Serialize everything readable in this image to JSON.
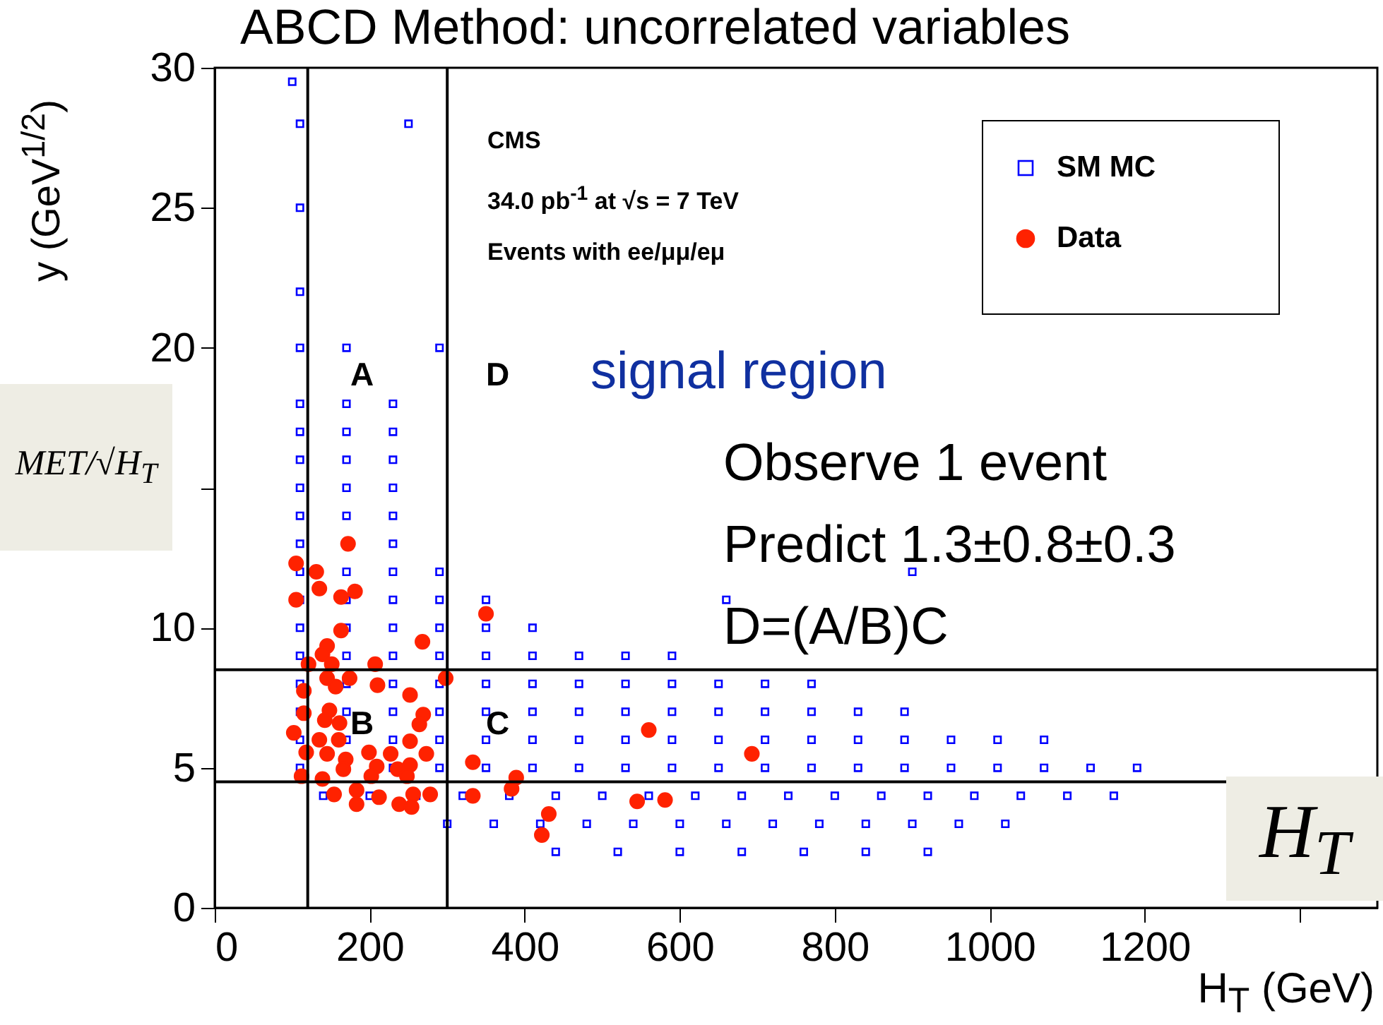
{
  "chart_data": {
    "type": "scatter",
    "title": "ABCD Method: uncorrelated variables",
    "xlabel": "H$_{T}$ (GeV)",
    "ylabel": "y (GeV$^{1/2}$)",
    "xlim": [
      0,
      1500
    ],
    "xticks": [
      0,
      200,
      400,
      600,
      800,
      1000,
      1200,
      {
        "value": 1400,
        "label": null
      }
    ],
    "ylim": [
      0,
      30
    ],
    "yticks": [
      0,
      5,
      10,
      {
        "value": 15,
        "label": null
      },
      20,
      25,
      30
    ],
    "legend": "top right",
    "ref_lines": [
      {
        "axis": "x",
        "value": 120,
        "color": "#000000"
      },
      {
        "axis": "x",
        "value": 300,
        "color": "#000000"
      },
      {
        "axis": "y",
        "value": 8.5,
        "color": "#000000"
      },
      {
        "axis": "y",
        "value": 4.5,
        "color": "#000000"
      }
    ],
    "annotations": [
      "CMS",
      "34.0 pb$^{-1}$  at √s = 7 TeV",
      "Events with ee/μμ/eμ",
      "A",
      "D",
      "B",
      "C",
      "signal region",
      "Observe 1 event",
      "Predict 1.3±0.8±0.3",
      "D=(A/B)C",
      "MET/√H$_{T}$",
      "H$_{T}$"
    ],
    "series": [
      {
        "name": "SM MC",
        "color": "#0000ff",
        "marker": "square",
        "x": [
          440,
          520,
          600,
          680,
          760,
          840,
          920,
          300,
          360,
          420,
          480,
          540,
          600,
          660,
          720,
          780,
          840,
          900,
          960,
          1020,
          140,
          200,
          260,
          320,
          380,
          440,
          500,
          560,
          620,
          680,
          740,
          800,
          860,
          920,
          980,
          1040,
          1100,
          1160,
          110,
          230,
          290,
          350,
          410,
          470,
          530,
          590,
          650,
          710,
          770,
          830,
          890,
          950,
          1010,
          1070,
          1130,
          1190,
          110,
          170,
          230,
          290,
          350,
          410,
          470,
          530,
          590,
          650,
          710,
          770,
          830,
          890,
          950,
          1010,
          1070,
          110,
          170,
          230,
          290,
          350,
          410,
          470,
          530,
          590,
          650,
          710,
          770,
          830,
          890,
          110,
          170,
          230,
          290,
          350,
          410,
          470,
          530,
          590,
          650,
          710,
          770,
          110,
          170,
          230,
          290,
          350,
          410,
          470,
          530,
          590,
          110,
          170,
          230,
          290,
          350,
          410,
          110,
          170,
          230,
          290,
          350,
          660,
          110,
          170,
          230,
          290,
          900,
          110,
          230,
          110,
          170,
          230,
          110,
          170,
          230,
          110,
          170,
          230,
          110,
          170,
          230,
          110,
          170,
          230,
          110,
          170,
          290,
          110,
          110,
          110,
          250,
          100
        ],
        "values": [
          2,
          2,
          2,
          2,
          2,
          2,
          2,
          3,
          3,
          3,
          3,
          3,
          3,
          3,
          3,
          3,
          3,
          3,
          3,
          3,
          4,
          4,
          4,
          4,
          4,
          4,
          4,
          4,
          4,
          4,
          4,
          4,
          4,
          4,
          4,
          4,
          4,
          4,
          5,
          5,
          5,
          5,
          5,
          5,
          5,
          5,
          5,
          5,
          5,
          5,
          5,
          5,
          5,
          5,
          5,
          5,
          6,
          6,
          6,
          6,
          6,
          6,
          6,
          6,
          6,
          6,
          6,
          6,
          6,
          6,
          6,
          6,
          6,
          7,
          7,
          7,
          7,
          7,
          7,
          7,
          7,
          7,
          7,
          7,
          7,
          7,
          7,
          8,
          8,
          8,
          8,
          8,
          8,
          8,
          8,
          8,
          8,
          8,
          8,
          9,
          9,
          9,
          9,
          9,
          9,
          9,
          9,
          9,
          10,
          10,
          10,
          10,
          10,
          10,
          11,
          11,
          11,
          11,
          11,
          11,
          12,
          12,
          12,
          12,
          12,
          13,
          13,
          14,
          14,
          14,
          15,
          15,
          15,
          16,
          16,
          16,
          17,
          17,
          17,
          18,
          18,
          18,
          20,
          20,
          20,
          22,
          25,
          28,
          28,
          29.5
        ]
      },
      {
        "name": "Data",
        "color": "#ff2200",
        "marker": "circle",
        "x": [
          172,
          105,
          131,
          135,
          105,
          163,
          181,
          350,
          163,
          268,
          145,
          139,
          121,
          151,
          207,
          298,
          145,
          174,
          115,
          156,
          210,
          252,
          115,
          148,
          142,
          161,
          269,
          264,
          102,
          135,
          160,
          252,
          118,
          145,
          199,
          227,
          273,
          169,
          166,
          209,
          236,
          252,
          112,
          139,
          202,
          248,
          333,
          154,
          183,
          183,
          212,
          238,
          256,
          254,
          278,
          333,
          560,
          693,
          389,
          383,
          545,
          581,
          431,
          422
        ],
        "values": [
          13.0,
          12.3,
          12.0,
          11.4,
          11.0,
          11.1,
          11.3,
          10.5,
          9.9,
          9.5,
          9.35,
          9.05,
          8.7,
          8.7,
          8.7,
          8.2,
          8.2,
          8.2,
          7.75,
          7.9,
          7.95,
          7.6,
          6.95,
          7.05,
          6.7,
          6.6,
          6.9,
          6.55,
          6.25,
          6.0,
          6.0,
          5.95,
          5.55,
          5.5,
          5.55,
          5.5,
          5.5,
          5.3,
          4.95,
          5.05,
          4.95,
          5.1,
          4.7,
          4.6,
          4.7,
          4.7,
          5.2,
          4.05,
          4.2,
          3.7,
          3.95,
          3.7,
          4.05,
          3.6,
          4.05,
          4.0,
          6.35,
          5.5,
          4.65,
          4.25,
          3.8,
          3.85,
          3.35,
          2.6
        ]
      }
    ]
  }
}
